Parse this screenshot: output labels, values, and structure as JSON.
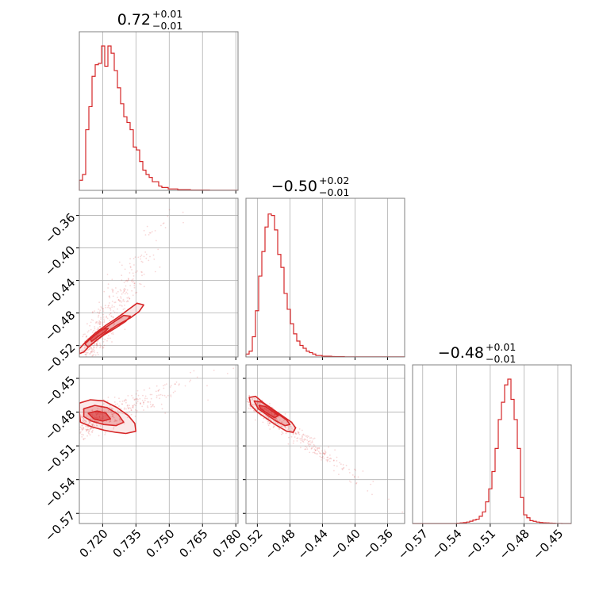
{
  "chart_data": {
    "type": "corner",
    "accent_color": "#d62728",
    "grid": true,
    "parameters": [
      {
        "title_main": "0.72",
        "title_plus": "+0.01",
        "title_minus": "−0.01",
        "range": [
          0.7095,
          0.781
        ],
        "ticks": [
          0.72,
          0.735,
          0.75,
          0.765,
          0.78
        ],
        "tick_labels": [
          "0.720",
          "0.735",
          "0.750",
          "0.765",
          "0.780"
        ]
      },
      {
        "title_main": "−0.50",
        "title_plus": "+0.02",
        "title_minus": "−0.01",
        "range": [
          -0.534,
          -0.339
        ],
        "ticks": [
          -0.52,
          -0.48,
          -0.44,
          -0.4,
          -0.36
        ],
        "tick_labels": [
          "−0.52",
          "−0.48",
          "−0.44",
          "−0.40",
          "−0.36"
        ]
      },
      {
        "title_main": "−0.48",
        "title_plus": "+0.01",
        "title_minus": "−0.01",
        "range": [
          -0.579,
          -0.438
        ],
        "ticks": [
          -0.57,
          -0.54,
          -0.51,
          -0.48,
          -0.45
        ],
        "tick_labels": [
          "−0.57",
          "−0.54",
          "−0.51",
          "−0.48",
          "−0.45"
        ]
      }
    ],
    "histograms": [
      [
        0.07,
        0.11,
        0.42,
        0.58,
        0.79,
        0.87,
        0.88,
        1.0,
        0.86,
        1.0,
        0.95,
        0.83,
        0.71,
        0.6,
        0.51,
        0.47,
        0.42,
        0.3,
        0.28,
        0.2,
        0.14,
        0.11,
        0.09,
        0.06,
        0.06,
        0.03,
        0.02,
        0.02,
        0.01,
        0.01,
        0.01,
        0.005,
        0.005,
        0.005,
        0.005,
        0.002,
        0.002,
        0.002,
        0.002,
        0.002,
        0.002,
        0.001,
        0.001,
        0.001,
        0.001,
        0.001,
        0.001,
        0.001,
        0.001,
        0.001
      ],
      [
        0.02,
        0.04,
        0.14,
        0.32,
        0.56,
        0.73,
        0.9,
        0.99,
        0.98,
        0.88,
        0.71,
        0.62,
        0.44,
        0.33,
        0.23,
        0.16,
        0.11,
        0.08,
        0.06,
        0.04,
        0.03,
        0.02,
        0.01,
        0.01,
        0.005,
        0.005,
        0.005,
        0.003,
        0.002,
        0.002,
        0.002,
        0.001,
        0.001,
        0.001,
        0.001,
        0.001,
        0.001,
        0.001,
        0.001,
        0.001,
        0.001,
        0.001,
        0.001,
        0.001,
        0.001,
        0.001,
        0.001,
        0.001,
        0.001,
        0.001
      ],
      [
        0.0,
        0.0,
        0.0,
        0.0,
        0.0,
        0.0,
        0.0,
        0.0,
        0.0,
        0.0,
        0.0,
        0.0,
        0.0,
        0.0,
        0.002,
        0.004,
        0.006,
        0.01,
        0.016,
        0.024,
        0.03,
        0.05,
        0.08,
        0.15,
        0.24,
        0.36,
        0.52,
        0.72,
        0.84,
        0.96,
        1.0,
        0.86,
        0.72,
        0.52,
        0.18,
        0.06,
        0.04,
        0.02,
        0.015,
        0.01,
        0.007,
        0.005,
        0.004,
        0.003,
        0.002,
        0.001,
        0.001,
        0.0,
        0.0,
        0.0
      ]
    ],
    "pairs": [
      {
        "x_param": 0,
        "y_param": 1,
        "center": [
          0.7185,
          -0.505
        ],
        "slope": 4.2,
        "spread_along": 0.006,
        "spread_across": 0.006,
        "contours": [
          [
            [
              0.7115,
              -0.528
            ],
            [
              0.7135,
              -0.522
            ],
            [
              0.7175,
              -0.513
            ],
            [
              0.7215,
              -0.504
            ],
            [
              0.7265,
              -0.495
            ],
            [
              0.7325,
              -0.486
            ],
            [
              0.7365,
              -0.478
            ],
            [
              0.7385,
              -0.47
            ],
            [
              0.7355,
              -0.468
            ],
            [
              0.7315,
              -0.476
            ],
            [
              0.7265,
              -0.486
            ],
            [
              0.7215,
              -0.495
            ],
            [
              0.7165,
              -0.505
            ],
            [
              0.7125,
              -0.515
            ],
            [
              0.7095,
              -0.524
            ],
            [
              0.7095,
              -0.53
            ]
          ],
          [
            [
              0.7135,
              -0.522
            ],
            [
              0.7165,
              -0.515
            ],
            [
              0.7205,
              -0.507
            ],
            [
              0.7255,
              -0.499
            ],
            [
              0.7305,
              -0.49
            ],
            [
              0.7325,
              -0.484
            ],
            [
              0.7295,
              -0.483
            ],
            [
              0.7245,
              -0.492
            ],
            [
              0.7195,
              -0.501
            ],
            [
              0.7155,
              -0.509
            ],
            [
              0.712,
              -0.518
            ]
          ],
          [
            [
              0.715,
              -0.515
            ],
            [
              0.7175,
              -0.51
            ],
            [
              0.721,
              -0.503
            ],
            [
              0.7225,
              -0.499
            ],
            [
              0.72,
              -0.5
            ],
            [
              0.717,
              -0.506
            ],
            [
              0.7145,
              -0.512
            ]
          ]
        ]
      },
      {
        "x_param": 0,
        "y_param": 2,
        "center": [
          0.7185,
          -0.486
        ],
        "slope": 0.7,
        "spread_along": 0.008,
        "spread_across": 0.006,
        "contours": [
          [
            [
              0.7095,
              -0.472
            ],
            [
              0.7145,
              -0.469
            ],
            [
              0.7205,
              -0.47
            ],
            [
              0.7265,
              -0.476
            ],
            [
              0.7315,
              -0.483
            ],
            [
              0.7345,
              -0.49
            ],
            [
              0.735,
              -0.497
            ],
            [
              0.7305,
              -0.499
            ],
            [
              0.726,
              -0.498
            ],
            [
              0.7205,
              -0.496
            ],
            [
              0.715,
              -0.493
            ],
            [
              0.71,
              -0.489
            ],
            [
              0.7095,
              -0.48
            ]
          ],
          [
            [
              0.7115,
              -0.477
            ],
            [
              0.7165,
              -0.474
            ],
            [
              0.722,
              -0.476
            ],
            [
              0.727,
              -0.482
            ],
            [
              0.7295,
              -0.489
            ],
            [
              0.726,
              -0.492
            ],
            [
              0.7205,
              -0.491
            ],
            [
              0.715,
              -0.488
            ],
            [
              0.7115,
              -0.484
            ]
          ],
          [
            [
              0.7135,
              -0.481
            ],
            [
              0.7175,
              -0.479
            ],
            [
              0.7215,
              -0.481
            ],
            [
              0.7235,
              -0.486
            ],
            [
              0.72,
              -0.488
            ],
            [
              0.716,
              -0.486
            ]
          ]
        ]
      },
      {
        "x_param": 1,
        "y_param": 2,
        "center": [
          -0.497,
          -0.487
        ],
        "slope": -0.52,
        "spread_along": 0.022,
        "spread_across": 0.004,
        "contours": [
          [
            [
              -0.53,
              -0.467
            ],
            [
              -0.522,
              -0.466
            ],
            [
              -0.512,
              -0.472
            ],
            [
              -0.5,
              -0.478
            ],
            [
              -0.488,
              -0.484
            ],
            [
              -0.478,
              -0.489
            ],
            [
              -0.473,
              -0.494
            ],
            [
              -0.476,
              -0.498
            ],
            [
              -0.484,
              -0.497
            ],
            [
              -0.496,
              -0.492
            ],
            [
              -0.508,
              -0.486
            ],
            [
              -0.52,
              -0.48
            ],
            [
              -0.528,
              -0.474
            ]
          ],
          [
            [
              -0.524,
              -0.47
            ],
            [
              -0.515,
              -0.471
            ],
            [
              -0.505,
              -0.476
            ],
            [
              -0.494,
              -0.482
            ],
            [
              -0.484,
              -0.487
            ],
            [
              -0.48,
              -0.491
            ],
            [
              -0.486,
              -0.492
            ],
            [
              -0.497,
              -0.488
            ],
            [
              -0.509,
              -0.482
            ],
            [
              -0.519,
              -0.477
            ]
          ],
          [
            [
              -0.518,
              -0.474
            ],
            [
              -0.51,
              -0.475
            ],
            [
              -0.5,
              -0.48
            ],
            [
              -0.494,
              -0.483
            ],
            [
              -0.499,
              -0.485
            ],
            [
              -0.508,
              -0.481
            ],
            [
              -0.516,
              -0.477
            ]
          ]
        ]
      }
    ]
  }
}
